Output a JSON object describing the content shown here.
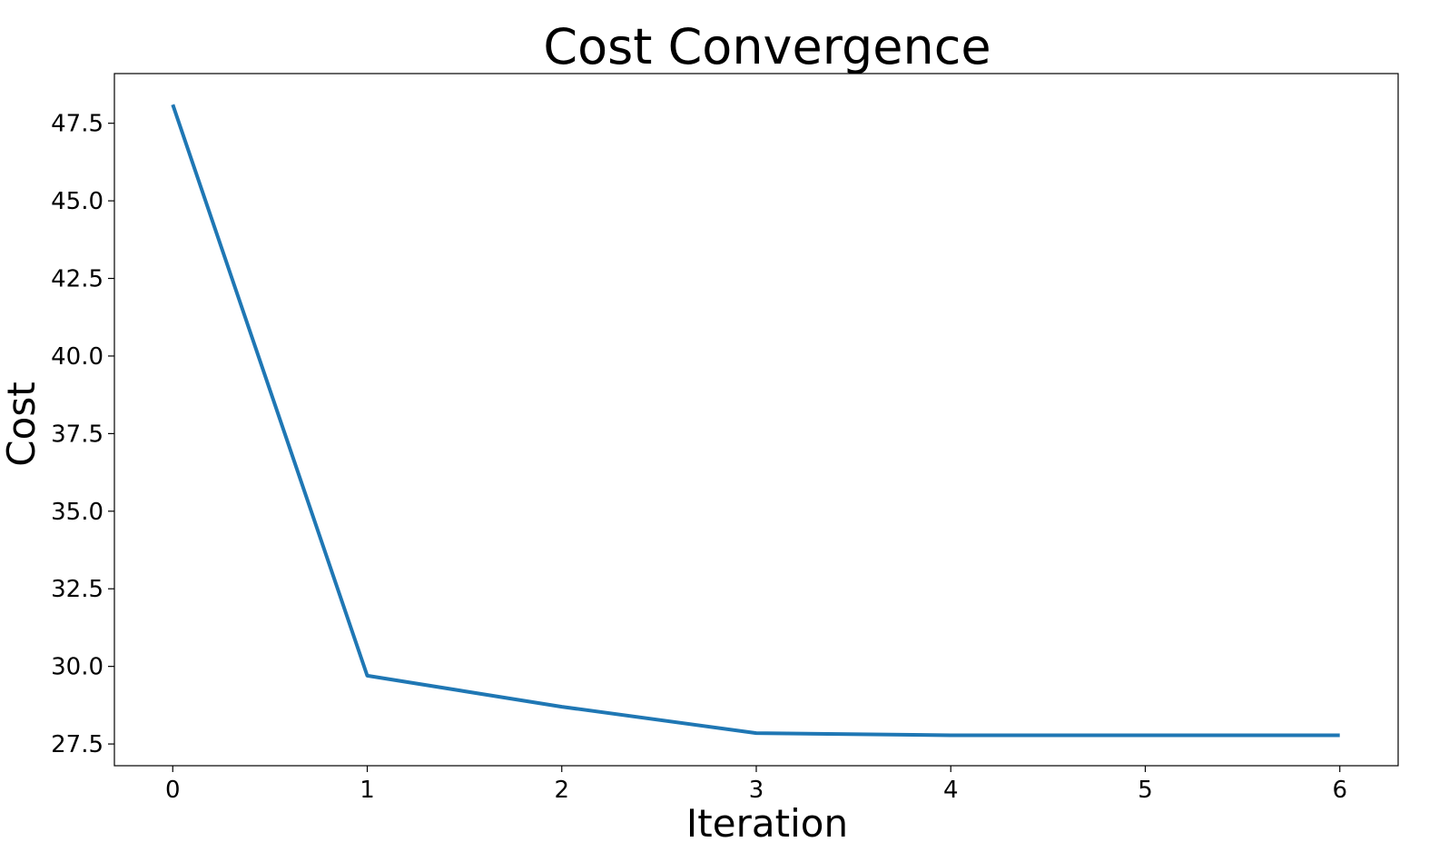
{
  "chart_data": {
    "type": "line",
    "title": "Cost Convergence",
    "xlabel": "Iteration",
    "ylabel": "Cost",
    "x": [
      0,
      1,
      2,
      3,
      4,
      5,
      6
    ],
    "series": [
      {
        "values": [
          48.1,
          29.7,
          28.7,
          27.85,
          27.78,
          27.78,
          27.78
        ]
      }
    ],
    "xlim": [
      -0.3,
      6.3
    ],
    "ylim": [
      26.8,
      49.1
    ],
    "xticks": [
      0,
      1,
      2,
      3,
      4,
      5,
      6
    ],
    "xtick_labels": [
      "0",
      "1",
      "2",
      "3",
      "4",
      "5",
      "6"
    ],
    "yticks": [
      27.5,
      30.0,
      32.5,
      35.0,
      37.5,
      40.0,
      42.5,
      45.0,
      47.5
    ],
    "ytick_labels": [
      "27.5",
      "30.0",
      "32.5",
      "35.0",
      "37.5",
      "40.0",
      "42.5",
      "45.0",
      "47.5"
    ],
    "grid": false,
    "line_color": "#1f77b4"
  }
}
